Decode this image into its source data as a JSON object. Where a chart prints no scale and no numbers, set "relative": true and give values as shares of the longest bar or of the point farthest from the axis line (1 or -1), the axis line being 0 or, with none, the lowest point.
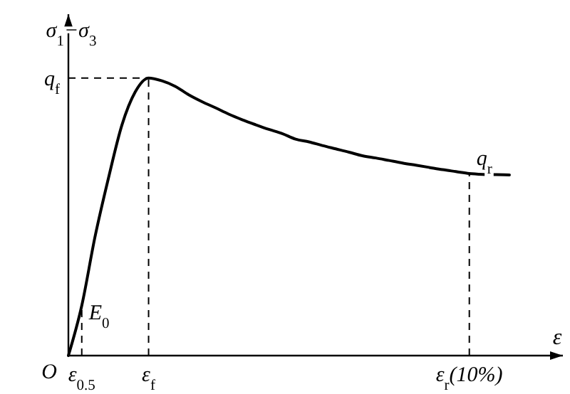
{
  "chart_data": {
    "type": "line",
    "relative": true,
    "xlabel": "ε",
    "ylabel": "σ$_{1}$−σ$_{3}$",
    "categories": [
      null,
      "ε$_{0.5}$",
      null,
      null,
      null,
      null,
      "ε$_{f}$",
      null,
      null,
      null,
      null,
      null,
      null,
      null,
      null,
      null,
      null,
      null,
      null,
      null,
      null,
      null,
      null,
      null,
      null,
      null,
      null,
      null,
      null,
      null,
      "ε$_{r}$(10%)",
      null,
      null,
      null
    ],
    "series": [
      {
        "color": "#000000",
        "values": [
          0,
          0.18,
          0.43,
          0.64,
          0.83,
          0.95,
          1,
          0.99,
          0.97,
          0.94,
          0.915,
          0.893,
          0.87,
          0.85,
          0.832,
          0.815,
          0.8,
          0.78,
          0.77,
          0.757,
          0.745,
          0.733,
          0.72,
          0.712,
          0.703,
          0.694,
          0.686,
          0.678,
          0.67,
          0.663,
          0.656,
          0.653,
          0.652,
          0.651
        ]
      }
    ],
    "ref_lines": [
      {
        "axis": "y",
        "value": 1,
        "label": "q$_{f}$",
        "line_style": "dashed"
      },
      {
        "axis": "x",
        "value": "ε$_{0.5}$",
        "line_style": "dashed"
      },
      {
        "axis": "x",
        "value": "ε$_{f}$",
        "line_style": "dashed"
      },
      {
        "axis": "x",
        "value": "ε$_{r}$(10%)",
        "line_style": "dashed"
      }
    ],
    "annotations": [
      {
        "text": "q$_{r}$",
        "x": "ε$_{r}$(10%)",
        "y": 0.656
      },
      {
        "text": "E$_{0}$",
        "x": "ε$_{0.5}$",
        "y": 0.1
      },
      "O"
    ],
    "line_style": "solid"
  }
}
